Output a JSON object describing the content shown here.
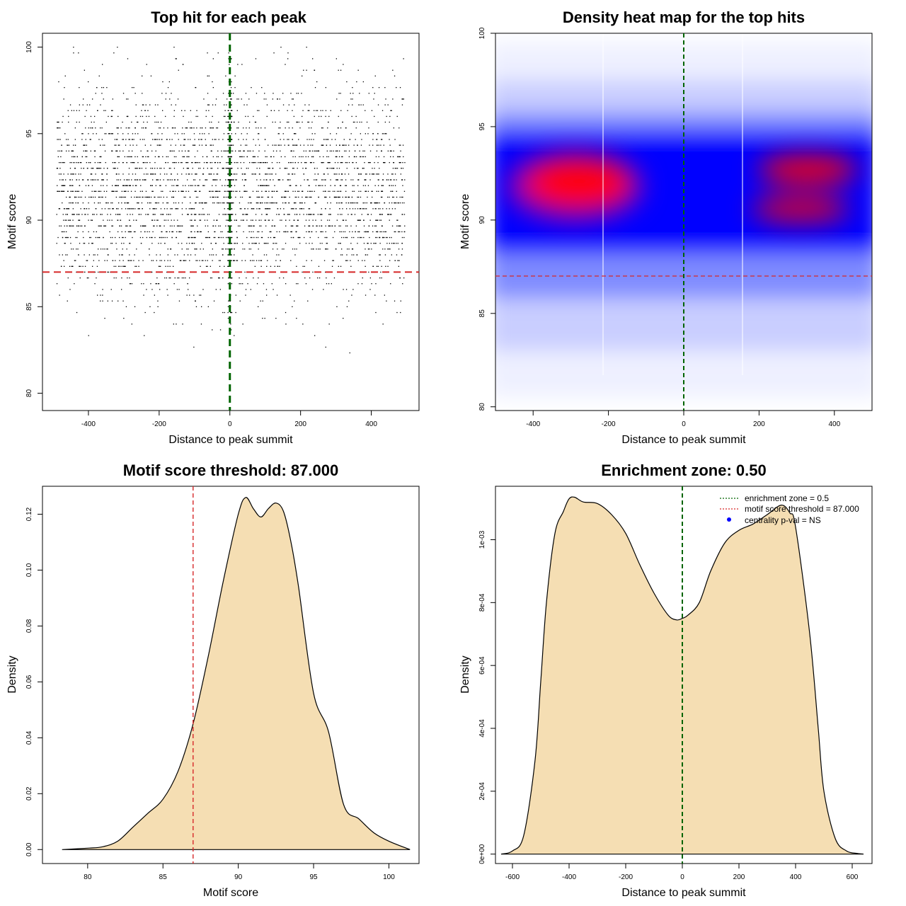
{
  "colors": {
    "scatter_points": "#000000",
    "threshold_line": "#d62728",
    "zone_line": "#006400",
    "density_fill": "#f5deb3",
    "heat_low": "#ffffff",
    "heat_mid": "#0000ff",
    "heat_high": "#ff0000",
    "centrality_marker": "#0000ff"
  },
  "chart_data": [
    {
      "type": "scatter",
      "title": "Top hit for each peak",
      "xlabel": "Distance to peak summit",
      "ylabel": "Motif score",
      "xlim": [
        -530,
        535
      ],
      "ylim": [
        79.0,
        100.8
      ],
      "xticks": [
        "-400",
        "-200",
        "0",
        "200",
        "400"
      ],
      "yticks": [
        "80",
        "85",
        "90",
        "95",
        "100"
      ],
      "grid": false,
      "reference_lines": {
        "vertical_x": 0,
        "horizontal_y": 87
      },
      "point_distribution": {
        "count": 4000,
        "x_range": [
          -490,
          495
        ],
        "score_center": 91.6,
        "score_sd": 3.0,
        "score_min": 81,
        "score_max": 100,
        "note_values": "top hit score per peak"
      }
    },
    {
      "type": "heatmap",
      "title": "Density heat map for the top hits",
      "xlabel": "Distance to peak summit",
      "ylabel": "Motif score",
      "xlim": [
        -500,
        500
      ],
      "ylim": [
        79.8,
        100.0
      ],
      "xticks": [
        "-400",
        "-200",
        "0",
        "200",
        "400"
      ],
      "yticks": [
        "80",
        "85",
        "90",
        "95",
        "100"
      ],
      "reference_lines": {
        "vertical_x": 0,
        "horizontal_y": 87
      },
      "hotspots": [
        {
          "x": -280,
          "y": 92.0,
          "intensity": 1.0
        },
        {
          "x": 330,
          "y": 92.7,
          "intensity": 0.85
        },
        {
          "x": 310,
          "y": 90.6,
          "intensity": 0.75
        }
      ]
    },
    {
      "type": "area",
      "title": "Motif score threshold: 87.000",
      "xlabel": "Motif score",
      "ylabel": "Density",
      "xlim": [
        77.0,
        102.0
      ],
      "ylim": [
        -0.005,
        0.13
      ],
      "xticks": [
        "80",
        "85",
        "90",
        "95",
        "100"
      ],
      "yticks": [
        "0.00",
        "0.02",
        "0.04",
        "0.06",
        "0.08",
        "0.10",
        "0.12"
      ],
      "reference_lines": {
        "vertical_x": 87
      },
      "x": [
        78.3,
        80,
        81,
        82,
        83,
        84,
        85,
        86,
        87,
        88,
        89,
        90,
        90.5,
        91,
        91.5,
        92,
        92.5,
        93,
        93.5,
        94,
        95,
        96,
        97,
        98,
        99,
        100,
        101.4
      ],
      "y": [
        0.0,
        0.0005,
        0.001,
        0.003,
        0.008,
        0.013,
        0.018,
        0.028,
        0.045,
        0.069,
        0.096,
        0.12,
        0.126,
        0.122,
        0.119,
        0.122,
        0.124,
        0.121,
        0.11,
        0.094,
        0.056,
        0.042,
        0.016,
        0.011,
        0.006,
        0.003,
        0.0
      ]
    },
    {
      "type": "area",
      "title": "Enrichment zone: 0.50",
      "xlabel": "Distance to peak summit",
      "ylabel": "Density",
      "xlim": [
        -660,
        670
      ],
      "ylim": [
        -3e-05,
        0.00117
      ],
      "xticks": [
        "-600",
        "-400",
        "-200",
        "0",
        "200",
        "400",
        "600"
      ],
      "yticks": [
        "0e+00",
        "2e-04",
        "4e-04",
        "6e-04",
        "8e-04",
        "1e-03"
      ],
      "reference_lines": {
        "vertical_x": 0
      },
      "x": [
        -640,
        -600,
        -560,
        -520,
        -500,
        -480,
        -450,
        -420,
        -400,
        -380,
        -350,
        -300,
        -250,
        -200,
        -150,
        -100,
        -50,
        -20,
        0,
        20,
        60,
        100,
        150,
        200,
        250,
        300,
        350,
        380,
        400,
        450,
        480,
        500,
        540,
        580,
        620,
        640
      ],
      "y": [
        0.0,
        1e-05,
        6e-05,
        0.0003,
        0.00055,
        0.0008,
        0.00102,
        0.00109,
        0.00113,
        0.001135,
        0.00112,
        0.001115,
        0.00108,
        0.00102,
        0.00092,
        0.00083,
        0.00076,
        0.000745,
        0.00075,
        0.00076,
        0.0008,
        0.0009,
        0.00099,
        0.00103,
        0.00105,
        0.00108,
        0.00111,
        0.001085,
        0.00104,
        0.0007,
        0.0004,
        0.0002,
        5e-05,
        1e-05,
        2e-06,
        0.0
      ],
      "legend": {
        "position": "top-right",
        "entries": [
          {
            "label": "enrichment zone = 0.5",
            "style": "dotted",
            "color": "#006400"
          },
          {
            "label": "motif score threshold = 87.000",
            "style": "dotted",
            "color": "#d62728"
          },
          {
            "label": "centrality p-val = NS",
            "style": "point",
            "color": "#0000ff"
          }
        ]
      }
    }
  ]
}
